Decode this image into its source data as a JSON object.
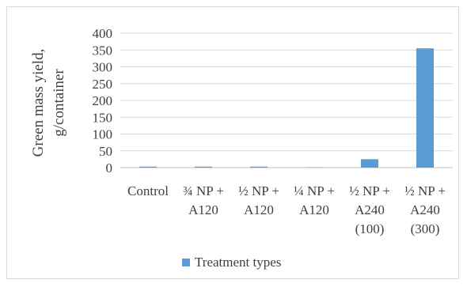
{
  "chart_data": {
    "type": "bar",
    "title": "",
    "ylabel_lines": [
      "Green mass yield,",
      "g/container"
    ],
    "xlabel": "",
    "ylim": [
      0,
      400
    ],
    "yticks": [
      0,
      50,
      100,
      150,
      200,
      250,
      300,
      350,
      400
    ],
    "categories": [
      [
        "Control"
      ],
      [
        "¾ NP +",
        "A120"
      ],
      [
        "½ NP +",
        "A120"
      ],
      [
        "¼ NP +",
        "A120"
      ],
      [
        "½ NP +",
        "A240",
        "(100)"
      ],
      [
        "½ NP +",
        "A240",
        "(300)"
      ]
    ],
    "series": [
      {
        "name": "Treatment types",
        "color": "#5b9bd5",
        "values": [
          3,
          3,
          3,
          1,
          25,
          355
        ]
      }
    ],
    "grid": true,
    "legend_position": "bottom"
  }
}
